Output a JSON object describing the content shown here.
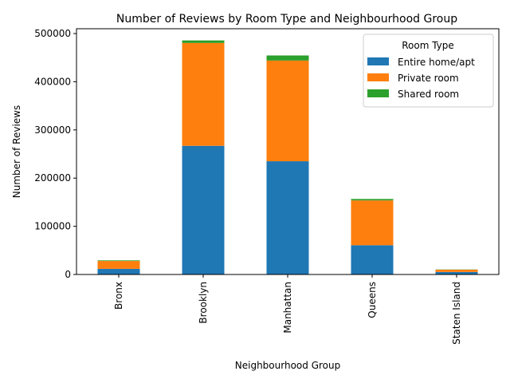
{
  "chart_data": {
    "type": "bar",
    "stacked": true,
    "title": "Number of Reviews by Room Type and Neighbourhood Group",
    "xlabel": "Neighbourhood Group",
    "ylabel": "Number of Reviews",
    "categories": [
      "Bronx",
      "Brooklyn",
      "Manhattan",
      "Queens",
      "Staten Island"
    ],
    "ylim": [
      0,
      510000
    ],
    "yticks": [
      0,
      100000,
      200000,
      300000,
      400000,
      500000
    ],
    "series": [
      {
        "name": "Entire home/apt",
        "color": "#1f77b4",
        "values": [
          11700,
          267000,
          235000,
          60700,
          5200
        ]
      },
      {
        "name": "Private room",
        "color": "#ff7f0e",
        "values": [
          16300,
          213500,
          209000,
          93000,
          4800
        ]
      },
      {
        "name": "Shared room",
        "color": "#2ca02c",
        "values": [
          1300,
          5200,
          10500,
          3000,
          400
        ]
      }
    ],
    "legend": {
      "title": "Room Type",
      "placement": "top-right"
    },
    "grid": false
  }
}
